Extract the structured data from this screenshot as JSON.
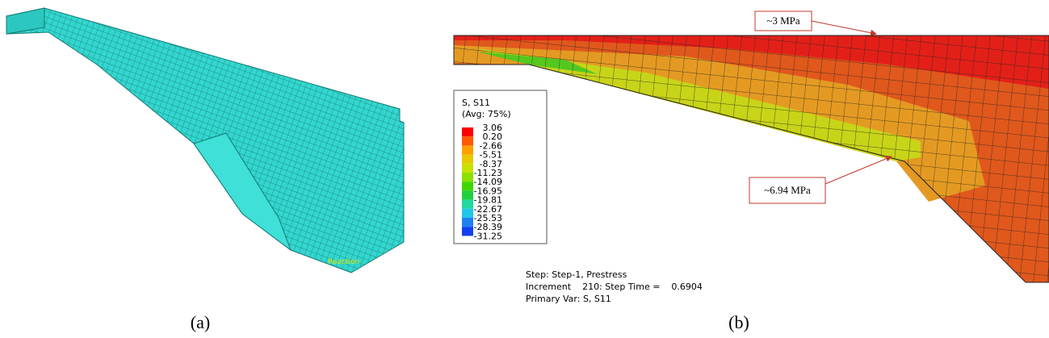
{
  "panel_a": {
    "reaction_label": "Reaction",
    "caption": "(a)"
  },
  "panel_b": {
    "legend": {
      "title": "S, S11",
      "subtitle": "(Avg: 75%)",
      "labels": [
        "3.06",
        "0.20",
        "-2.66",
        "-5.51",
        "-8.37",
        "-11.23",
        "-14.09",
        "-16.95",
        "-19.81",
        "-22.67",
        "-25.53",
        "-28.39",
        "-31.25"
      ]
    },
    "info": [
      "Step: Step-1, Prestress",
      "Increment    210: Step Time =    0.6904",
      "Primary Var: S, S11"
    ],
    "annotations": [
      "~3 MPa",
      "~6.94 MPa"
    ],
    "caption": "(b)"
  }
}
